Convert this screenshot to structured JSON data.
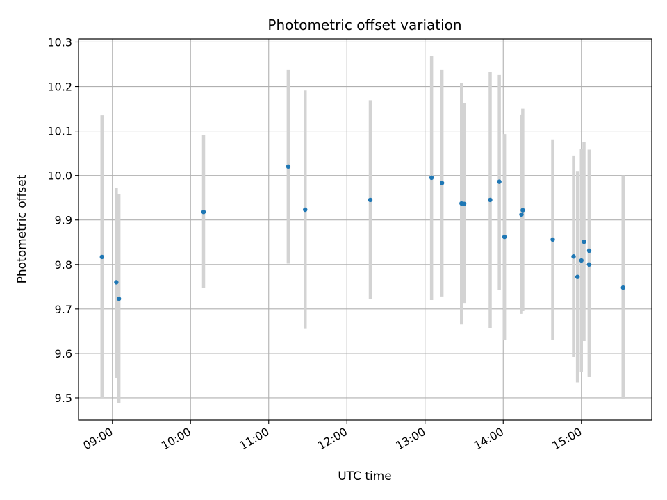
{
  "chart_data": {
    "type": "scatter",
    "title": "Photometric offset variation",
    "xlabel": "UTC time",
    "ylabel": "Photometric offset",
    "x_ticks": [
      "09:00",
      "10:00",
      "11:00",
      "12:00",
      "13:00",
      "14:00",
      "15:00"
    ],
    "y_ticks": [
      "9.5",
      "9.6",
      "9.7",
      "9.8",
      "9.9",
      "10.0",
      "10.1",
      "10.2",
      "10.3"
    ],
    "xlim": [
      "08:34",
      "15:54"
    ],
    "ylim": [
      9.45,
      10.307
    ],
    "grid": true,
    "colors": {
      "points": "#1f77b4",
      "error_bars": "#d3d3d3",
      "grid": "#b0b0b0"
    },
    "points": [
      {
        "time": "08:52",
        "y": 9.817,
        "ylow": 9.5,
        "yhigh": 10.135
      },
      {
        "time": "09:03",
        "y": 9.76,
        "ylow": 9.545,
        "yhigh": 9.972
      },
      {
        "time": "09:05",
        "y": 9.723,
        "ylow": 9.488,
        "yhigh": 9.958
      },
      {
        "time": "10:10",
        "y": 9.918,
        "ylow": 9.748,
        "yhigh": 10.09
      },
      {
        "time": "11:15",
        "y": 10.02,
        "ylow": 9.802,
        "yhigh": 10.237
      },
      {
        "time": "11:28",
        "y": 9.923,
        "ylow": 9.655,
        "yhigh": 10.191
      },
      {
        "time": "12:18",
        "y": 9.945,
        "ylow": 9.722,
        "yhigh": 10.169
      },
      {
        "time": "13:05",
        "y": 9.995,
        "ylow": 9.72,
        "yhigh": 10.268
      },
      {
        "time": "13:13",
        "y": 9.983,
        "ylow": 9.728,
        "yhigh": 10.237
      },
      {
        "time": "13:28",
        "y": 9.937,
        "ylow": 9.665,
        "yhigh": 10.207
      },
      {
        "time": "13:30",
        "y": 9.936,
        "ylow": 9.712,
        "yhigh": 10.162
      },
      {
        "time": "13:50",
        "y": 9.945,
        "ylow": 9.657,
        "yhigh": 10.232
      },
      {
        "time": "13:57",
        "y": 9.986,
        "ylow": 9.743,
        "yhigh": 10.226
      },
      {
        "time": "14:01",
        "y": 9.862,
        "ylow": 9.63,
        "yhigh": 10.093
      },
      {
        "time": "14:14",
        "y": 9.912,
        "ylow": 9.689,
        "yhigh": 10.137
      },
      {
        "time": "14:15",
        "y": 9.922,
        "ylow": 9.695,
        "yhigh": 10.15
      },
      {
        "time": "14:38",
        "y": 9.856,
        "ylow": 9.63,
        "yhigh": 10.081
      },
      {
        "time": "14:54",
        "y": 9.818,
        "ylow": 9.592,
        "yhigh": 10.045
      },
      {
        "time": "14:57",
        "y": 9.772,
        "ylow": 9.535,
        "yhigh": 10.01
      },
      {
        "time": "15:00",
        "y": 9.809,
        "ylow": 9.558,
        "yhigh": 10.06
      },
      {
        "time": "15:02",
        "y": 9.851,
        "ylow": 9.628,
        "yhigh": 10.076
      },
      {
        "time": "15:06",
        "y": 9.831,
        "ylow": 9.547,
        "yhigh": 10.058
      },
      {
        "time": "15:06",
        "y": 9.8,
        "ylow": 9.547,
        "yhigh": 10.058
      },
      {
        "time": "15:32",
        "y": 9.748,
        "ylow": 9.497,
        "yhigh": 10.0
      }
    ]
  }
}
